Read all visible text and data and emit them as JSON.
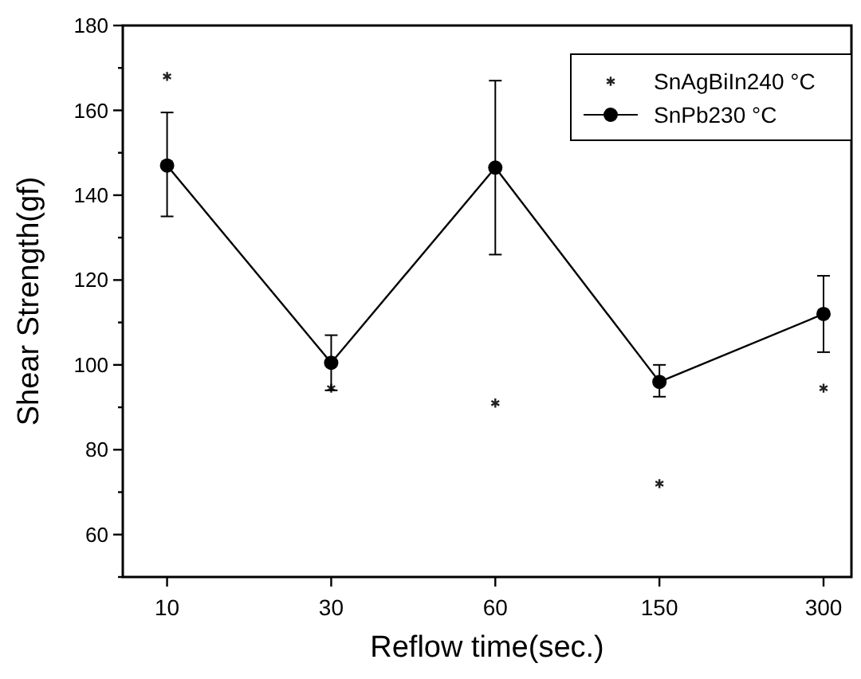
{
  "chart_data": {
    "type": "line",
    "xlabel": "Reflow time(sec.)",
    "ylabel": "Shear Strength(gf)",
    "categories": [
      "10",
      "30",
      "60",
      "150",
      "300"
    ],
    "series": [
      {
        "name": "SnAgBiIn240 °C",
        "type": "scatter",
        "color": "#222222",
        "marker": "cross",
        "values": [
          168,
          94.5,
          91,
          72,
          94.5
        ]
      },
      {
        "name": "SnPb230 °C",
        "color": "#000000",
        "marker": "circle",
        "line_style": "solid",
        "values": [
          147,
          100.5,
          146.5,
          96,
          112
        ],
        "errors": [
          [
            135,
            159.5
          ],
          [
            94,
            107
          ],
          [
            126,
            167
          ],
          [
            92.5,
            100
          ],
          [
            103,
            121
          ]
        ]
      }
    ],
    "ylim": [
      50,
      180
    ],
    "yticks": [
      {
        "value": 50,
        "label": null
      },
      60,
      {
        "value": 70,
        "label": null
      },
      80,
      {
        "value": 90,
        "label": null
      },
      100,
      {
        "value": 110,
        "label": null
      },
      120,
      {
        "value": 130,
        "label": null
      },
      140,
      {
        "value": 150,
        "label": null
      },
      160,
      {
        "value": 170,
        "label": null
      },
      180
    ],
    "grid": false,
    "legend": "top right"
  }
}
